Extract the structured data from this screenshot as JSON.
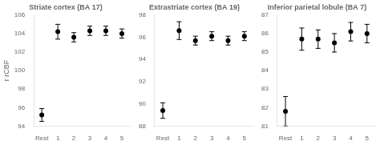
{
  "chart_data": [
    {
      "type": "errorbar",
      "title": "Striate cortex (BA 17)",
      "ylabel": "r rCBF",
      "categories": [
        "Rest",
        "1",
        "2",
        "3",
        "4",
        "5"
      ],
      "values": [
        95.2,
        104.2,
        103.6,
        104.3,
        104.3,
        104.0
      ],
      "errors": [
        0.7,
        0.8,
        0.5,
        0.5,
        0.5,
        0.5
      ],
      "color": "black",
      "marker": "o",
      "ylim": [
        94,
        106
      ],
      "yticks": [
        94,
        96,
        98,
        100,
        102,
        104,
        106
      ],
      "grid": false
    },
    {
      "type": "errorbar",
      "title": "Extrastriate cortex (BA 19)",
      "categories": [
        "Rest",
        "1",
        "2",
        "3",
        "4",
        "5"
      ],
      "values": [
        89.4,
        96.6,
        95.7,
        96.1,
        95.7,
        96.1
      ],
      "errors": [
        0.7,
        0.8,
        0.4,
        0.4,
        0.4,
        0.4
      ],
      "color": "black",
      "marker": "o",
      "ylim": [
        88,
        98
      ],
      "yticks": [
        88,
        90,
        92,
        94,
        96,
        98
      ],
      "grid": false
    },
    {
      "type": "errorbar",
      "title": "Inferior parietal lobule (BA 7)",
      "categories": [
        "Rest",
        "1",
        "2",
        "3",
        "4",
        "5"
      ],
      "values": [
        81.8,
        85.7,
        85.7,
        85.5,
        86.1,
        86.0
      ],
      "errors": [
        0.8,
        0.6,
        0.5,
        0.5,
        0.5,
        0.5
      ],
      "color": "black",
      "marker": "o",
      "ylim": [
        81,
        87
      ],
      "yticks": [
        81,
        82,
        83,
        84,
        85,
        86,
        87
      ],
      "grid": false
    }
  ]
}
